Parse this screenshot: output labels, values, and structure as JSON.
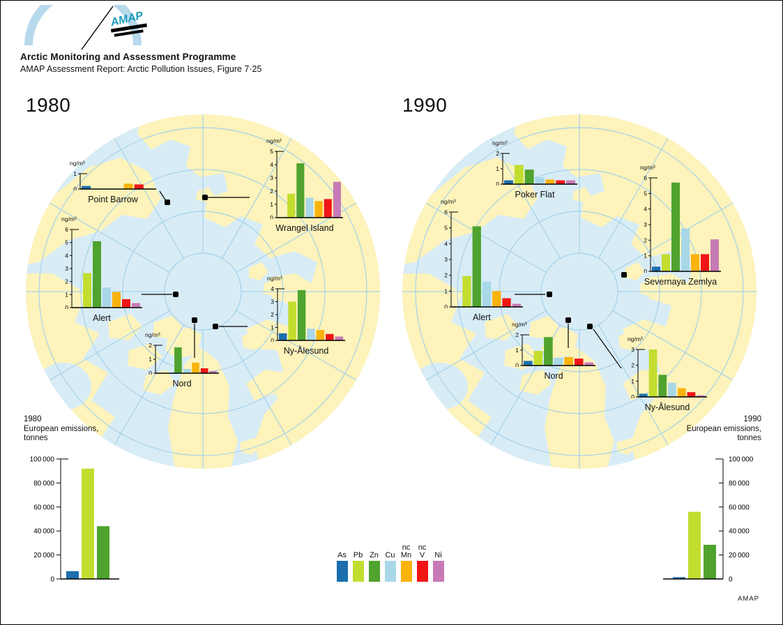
{
  "header": {
    "title": "Arctic Monitoring and Assessment Programme",
    "subtitle": "AMAP Assessment Report: Arctic Pollution Issues, Figure 7·25",
    "logo_text": "AMAP"
  },
  "panels": [
    {
      "year": "1980"
    },
    {
      "year": "1990"
    }
  ],
  "legend": {
    "items": [
      {
        "label_lines": [
          "As"
        ],
        "color": "#1b6fae"
      },
      {
        "label_lines": [
          "Pb"
        ],
        "color": "#c3dd2f"
      },
      {
        "label_lines": [
          "Zn"
        ],
        "color": "#4fa32e"
      },
      {
        "label_lines": [
          "Cu"
        ],
        "color": "#a8d7e8"
      },
      {
        "label_lines": [
          "nc",
          "Mn"
        ],
        "color": "#fab20c"
      },
      {
        "label_lines": [
          "nc",
          "V"
        ],
        "color": "#f01616"
      },
      {
        "label_lines": [
          "Ni"
        ],
        "color": "#c77ab5"
      }
    ]
  },
  "map_colors": {
    "ocean": "#d8ecf6",
    "land": "#fdf3bb",
    "grid": "#a5d2e9"
  },
  "footer": {
    "credit": "AMAP"
  },
  "chart_data": [
    {
      "id": "point-barrow-1980",
      "type": "bar",
      "title": "Point Barrow",
      "panel": "1980",
      "ylabel": "ng/m³",
      "ylim": [
        0,
        1
      ],
      "categories": [
        "As",
        "Pb",
        "Zn",
        "Cu",
        "Mn",
        "V",
        "Ni"
      ],
      "values": [
        0.2,
        0,
        0,
        0,
        0.35,
        0.3,
        0
      ]
    },
    {
      "id": "wrangel-island-1980",
      "type": "bar",
      "title": "Wrangel Island",
      "panel": "1980",
      "ylabel": "ng/m³",
      "ylim": [
        0,
        5
      ],
      "categories": [
        "As",
        "Pb",
        "Zn",
        "Cu",
        "Mn",
        "V",
        "Ni"
      ],
      "values": [
        0,
        1.8,
        4.1,
        1.5,
        1.25,
        1.4,
        2.7
      ]
    },
    {
      "id": "alert-1980",
      "type": "bar",
      "title": "Alert",
      "panel": "1980",
      "ylabel": "ng/m³",
      "ylim": [
        0,
        6
      ],
      "categories": [
        "As",
        "Pb",
        "Zn",
        "Cu",
        "Mn",
        "V",
        "Ni"
      ],
      "values": [
        0,
        2.65,
        5.1,
        1.55,
        1.2,
        0.65,
        0.35
      ]
    },
    {
      "id": "nord-1980",
      "type": "bar",
      "title": "Nord",
      "panel": "1980",
      "ylabel": "ng/m³",
      "ylim": [
        0,
        2
      ],
      "categories": [
        "As",
        "Pb",
        "Zn",
        "Cu",
        "Mn",
        "V",
        "Ni"
      ],
      "values": [
        0,
        0,
        1.85,
        0.3,
        0.75,
        0.35,
        0.15
      ]
    },
    {
      "id": "ny-alesund-1980",
      "type": "bar",
      "title": "Ny-Ålesund",
      "panel": "1980",
      "ylabel": "ng/m³",
      "ylim": [
        0,
        4
      ],
      "categories": [
        "As",
        "Pb",
        "Zn",
        "Cu",
        "Mn",
        "V",
        "Ni"
      ],
      "values": [
        0.55,
        3.0,
        3.9,
        0.9,
        0.8,
        0.5,
        0.3
      ]
    },
    {
      "id": "poker-flat-1990",
      "type": "bar",
      "title": "Poker Flat",
      "panel": "1990",
      "ylabel": "ng/m³",
      "ylim": [
        0,
        2
      ],
      "categories": [
        "As",
        "Pb",
        "Zn",
        "Cu",
        "Mn",
        "V",
        "Ni"
      ],
      "values": [
        0.25,
        1.25,
        0.95,
        0.45,
        0.3,
        0.25,
        0.25
      ]
    },
    {
      "id": "severnaya-zemlya-1990",
      "type": "bar",
      "title": "Severnaya Zemlya",
      "panel": "1990",
      "ylabel": "ng/m³",
      "ylim": [
        0,
        6
      ],
      "categories": [
        "As",
        "Pb",
        "Zn",
        "Cu",
        "Mn",
        "V",
        "Ni"
      ],
      "values": [
        0.3,
        1.1,
        5.7,
        2.75,
        1.1,
        1.1,
        2.05
      ]
    },
    {
      "id": "alert-1990",
      "type": "bar",
      "title": "Alert",
      "panel": "1990",
      "ylabel": "ng/m³",
      "ylim": [
        0,
        6
      ],
      "categories": [
        "As",
        "Pb",
        "Zn",
        "Cu",
        "Mn",
        "V",
        "Ni"
      ],
      "values": [
        0,
        1.95,
        5.1,
        1.6,
        1.0,
        0.55,
        0.2
      ]
    },
    {
      "id": "nord-1990",
      "type": "bar",
      "title": "Nord",
      "panel": "1990",
      "ylabel": "ng/m³",
      "ylim": [
        0,
        2
      ],
      "categories": [
        "As",
        "Pb",
        "Zn",
        "Cu",
        "Mn",
        "V",
        "Ni"
      ],
      "values": [
        0.3,
        0.95,
        1.85,
        0.5,
        0.55,
        0.45,
        0.2
      ]
    },
    {
      "id": "ny-alesund-1990",
      "type": "bar",
      "title": "Ny-Ålesund",
      "panel": "1990",
      "ylabel": "ng/m³",
      "ylim": [
        0,
        3
      ],
      "categories": [
        "As",
        "Pb",
        "Zn",
        "Cu",
        "Mn",
        "V",
        "Ni"
      ],
      "values": [
        0.2,
        3.0,
        1.4,
        0.9,
        0.55,
        0.3,
        0.1
      ]
    },
    {
      "id": "emissions-1980",
      "type": "bar",
      "title_lines": [
        "1980",
        "European emissions,",
        "tonnes"
      ],
      "ylim": [
        0,
        100000
      ],
      "ytick_labels": [
        "0",
        "20 000",
        "40 000",
        "60 000",
        "80 000",
        "100 000"
      ],
      "categories": [
        "As",
        "Pb",
        "Zn"
      ],
      "values": [
        6500,
        92000,
        44000
      ]
    },
    {
      "id": "emissions-1990",
      "type": "bar",
      "title_lines": [
        "1990",
        "European emissions,",
        "tonnes"
      ],
      "ylim": [
        0,
        100000
      ],
      "ytick_labels": [
        "0",
        "20 000",
        "40 000",
        "60 000",
        "80 000",
        "100 000"
      ],
      "categories": [
        "As",
        "Pb",
        "Zn"
      ],
      "values": [
        1500,
        56000,
        28500
      ]
    }
  ]
}
